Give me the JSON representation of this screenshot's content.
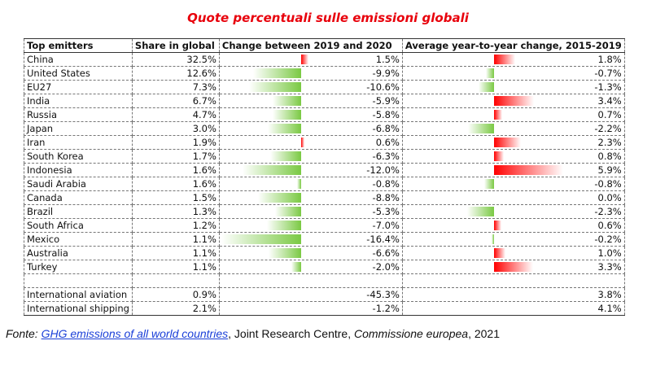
{
  "title": "Quote percentuali sulle emissioni globali",
  "headers": {
    "emitter": "Top emitters",
    "share": "Share in global",
    "change": "Change between 2019 and 2020",
    "avg": "Average year-to-year change, 2015-2019"
  },
  "colors": {
    "negative": "#7ac943",
    "positive": "#ff0000",
    "title": "#e8000b",
    "link": "#1a3fd8"
  },
  "rows": [
    {
      "name": "China",
      "share": "32.5%",
      "change": "1.5%",
      "change_val": 1.5,
      "avg": "1.8%",
      "avg_val": 1.8
    },
    {
      "name": "United States",
      "share": "12.6%",
      "change": "-9.9%",
      "change_val": -9.9,
      "avg": "-0.7%",
      "avg_val": -0.7
    },
    {
      "name": "EU27",
      "share": "7.3%",
      "change": "-10.6%",
      "change_val": -10.6,
      "avg": "-1.3%",
      "avg_val": -1.3
    },
    {
      "name": "India",
      "share": "6.7%",
      "change": "-5.9%",
      "change_val": -5.9,
      "avg": "3.4%",
      "avg_val": 3.4
    },
    {
      "name": "Russia",
      "share": "4.7%",
      "change": "-5.8%",
      "change_val": -5.8,
      "avg": "0.7%",
      "avg_val": 0.7
    },
    {
      "name": "Japan",
      "share": "3.0%",
      "change": "-6.8%",
      "change_val": -6.8,
      "avg": "-2.2%",
      "avg_val": -2.2
    },
    {
      "name": "Iran",
      "share": "1.9%",
      "change": "0.6%",
      "change_val": 0.6,
      "avg": "2.3%",
      "avg_val": 2.3
    },
    {
      "name": "South Korea",
      "share": "1.7%",
      "change": "-6.3%",
      "change_val": -6.3,
      "avg": "0.8%",
      "avg_val": 0.8
    },
    {
      "name": "Indonesia",
      "share": "1.6%",
      "change": "-12.0%",
      "change_val": -12.0,
      "avg": "5.9%",
      "avg_val": 5.9
    },
    {
      "name": "Saudi Arabia",
      "share": "1.6%",
      "change": "-0.8%",
      "change_val": -0.8,
      "avg": "-0.8%",
      "avg_val": -0.8
    },
    {
      "name": "Canada",
      "share": "1.5%",
      "change": "-8.8%",
      "change_val": -8.8,
      "avg": "0.0%",
      "avg_val": 0.0
    },
    {
      "name": "Brazil",
      "share": "1.3%",
      "change": "-5.3%",
      "change_val": -5.3,
      "avg": "-2.3%",
      "avg_val": -2.3
    },
    {
      "name": "South Africa",
      "share": "1.2%",
      "change": "-7.0%",
      "change_val": -7.0,
      "avg": "0.6%",
      "avg_val": 0.6
    },
    {
      "name": "Mexico",
      "share": "1.1%",
      "change": "-16.4%",
      "change_val": -16.4,
      "avg": "-0.2%",
      "avg_val": -0.2
    },
    {
      "name": "Australia",
      "share": "1.1%",
      "change": "-6.6%",
      "change_val": -6.6,
      "avg": "1.0%",
      "avg_val": 1.0
    },
    {
      "name": "Turkey",
      "share": "1.1%",
      "change": "-2.0%",
      "change_val": -2.0,
      "avg": "3.3%",
      "avg_val": 3.3
    }
  ],
  "extra_rows": [
    {
      "name": "International aviation",
      "share": "0.9%",
      "change": "-45.3%",
      "avg": "3.8%"
    },
    {
      "name": "International shipping",
      "share": "2.1%",
      "change": "-1.2%",
      "avg": "4.1%"
    }
  ],
  "source": {
    "prefix": "Fonte: ",
    "link_text": "GHG emissions of all world countries",
    "mid": ", Joint Research Centre, ",
    "org": "Commissione europea",
    "suffix": ", 2021"
  }
}
